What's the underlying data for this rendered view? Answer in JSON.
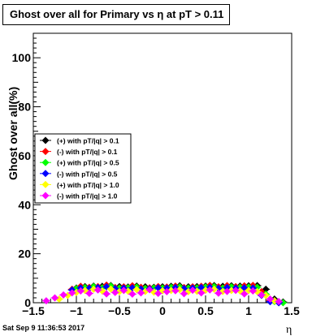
{
  "chart_data": {
    "type": "scatter",
    "title": "Ghost over all for Primary vs   η at pT > 0.11",
    "xlabel": "η",
    "ylabel": "Ghost over all(%)",
    "xlim": [
      -1.5,
      1.5
    ],
    "ylim": [
      0,
      110
    ],
    "x_ticks": [
      -1.5,
      -1,
      -0.5,
      0,
      0.5,
      1,
      1.5
    ],
    "x_tick_labels": [
      "−1.5",
      "−1",
      "−0.5",
      "0",
      "0.5",
      "1",
      "1.5"
    ],
    "y_ticks": [
      0,
      20,
      40,
      60,
      80,
      100
    ],
    "y_tick_labels": [
      "0",
      "20",
      "40",
      "60",
      "80",
      "100"
    ],
    "grid": false,
    "legend_position": "middle-left",
    "series": [
      {
        "name": "(+) with pT/|q| > 0.1",
        "color": "#000000",
        "x": [
          -1.0,
          -0.9,
          -0.8,
          -0.7,
          -0.6,
          -0.5,
          -0.4,
          -0.3,
          -0.2,
          -0.1,
          0.0,
          0.1,
          0.2,
          0.3,
          0.4,
          0.5,
          0.6,
          0.7,
          0.8,
          0.9,
          1.0,
          1.1,
          1.2,
          1.3,
          1.4
        ],
        "y": [
          6.0,
          6.6,
          6.8,
          6.7,
          7.0,
          6.6,
          6.4,
          6.8,
          6.5,
          6.3,
          6.5,
          6.7,
          6.9,
          6.5,
          6.6,
          6.8,
          7.0,
          6.7,
          6.9,
          6.8,
          6.9,
          7.0,
          5.5,
          1.5,
          0.3
        ]
      },
      {
        "name": "(-) with pT/|q| > 0.1",
        "color": "#ff0000",
        "x": [
          -1.05,
          -0.95,
          -0.85,
          -0.75,
          -0.65,
          -0.55,
          -0.45,
          -0.35,
          -0.25,
          -0.15,
          -0.05,
          0.05,
          0.15,
          0.25,
          0.35,
          0.45,
          0.55,
          0.65,
          0.75,
          0.85,
          0.95,
          1.05,
          1.15,
          1.25,
          1.35
        ],
        "y": [
          5.5,
          6.7,
          6.3,
          6.6,
          7.2,
          6.2,
          6.5,
          6.9,
          6.3,
          6.1,
          6.6,
          6.4,
          6.8,
          6.2,
          6.5,
          6.7,
          7.1,
          6.5,
          7.0,
          6.6,
          6.9,
          7.1,
          4.5,
          0.8,
          0.0
        ]
      },
      {
        "name": "(+) with pT/|q| > 0.5",
        "color": "#00ff00",
        "x": [
          -1.0,
          -0.9,
          -0.8,
          -0.7,
          -0.6,
          -0.5,
          -0.4,
          -0.3,
          -0.2,
          -0.1,
          0.0,
          0.1,
          0.2,
          0.3,
          0.4,
          0.5,
          0.6,
          0.7,
          0.8,
          0.9,
          1.0,
          1.1,
          1.2,
          1.3,
          1.4
        ],
        "y": [
          5.8,
          6.2,
          6.6,
          6.1,
          6.8,
          6.0,
          6.1,
          6.4,
          5.9,
          6.0,
          6.0,
          6.3,
          6.5,
          6.0,
          6.1,
          6.4,
          6.6,
          6.0,
          6.5,
          6.3,
          6.4,
          6.3,
          3.5,
          0.5,
          0.0
        ]
      },
      {
        "name": "(-) with pT/|q| > 0.5",
        "color": "#0000ff",
        "x": [
          -1.05,
          -0.95,
          -0.85,
          -0.75,
          -0.65,
          -0.55,
          -0.45,
          -0.35,
          -0.25,
          -0.15,
          -0.05,
          0.05,
          0.15,
          0.25,
          0.35,
          0.45,
          0.55,
          0.65,
          0.75,
          0.85,
          0.95,
          1.05,
          1.15,
          1.25,
          1.35
        ],
        "y": [
          5.2,
          6.0,
          5.9,
          6.2,
          6.5,
          5.8,
          6.0,
          6.1,
          5.6,
          5.7,
          6.1,
          6.0,
          6.2,
          5.8,
          6.0,
          6.2,
          6.3,
          5.9,
          6.2,
          6.0,
          6.1,
          6.0,
          3.0,
          0.4,
          0.0
        ]
      },
      {
        "name": "(+) with pT/|q| > 1.0",
        "color": "#ffff00",
        "x": [
          -1.2,
          -1.1,
          -1.0,
          -0.9,
          -0.8,
          -0.7,
          -0.6,
          -0.5,
          -0.4,
          -0.3,
          -0.2,
          -0.1,
          0.0,
          0.1,
          0.2,
          0.3,
          0.4,
          0.5,
          0.6,
          0.7,
          0.8,
          0.9,
          1.0,
          1.1,
          1.2,
          1.3
        ],
        "y": [
          1.5,
          3.0,
          4.2,
          5.0,
          5.5,
          4.8,
          5.6,
          4.5,
          4.7,
          5.4,
          4.6,
          4.3,
          4.9,
          5.0,
          5.3,
          4.5,
          4.7,
          5.1,
          5.5,
          4.6,
          5.0,
          4.8,
          5.0,
          4.5,
          3.0,
          0.8
        ]
      },
      {
        "name": "(-) with pT/|q| > 1.0",
        "color": "#ff00ff",
        "x": [
          -1.35,
          -1.25,
          -1.15,
          -1.05,
          -0.95,
          -0.85,
          -0.75,
          -0.65,
          -0.55,
          -0.45,
          -0.35,
          -0.25,
          -0.15,
          -0.05,
          0.05,
          0.15,
          0.25,
          0.35,
          0.45,
          0.55,
          0.65,
          0.75,
          0.85,
          0.95,
          1.05,
          1.15,
          1.25,
          1.35
        ],
        "y": [
          0.8,
          2.0,
          3.2,
          4.0,
          4.8,
          3.8,
          5.2,
          3.6,
          4.2,
          5.0,
          3.5,
          4.0,
          5.3,
          3.8,
          4.5,
          4.9,
          3.7,
          5.1,
          4.0,
          5.2,
          3.9,
          4.6,
          5.0,
          3.6,
          4.8,
          3.2,
          1.5,
          0.5
        ]
      }
    ]
  },
  "footer": {
    "datestamp": "Sat Sep  9 11:36:53 2017"
  }
}
